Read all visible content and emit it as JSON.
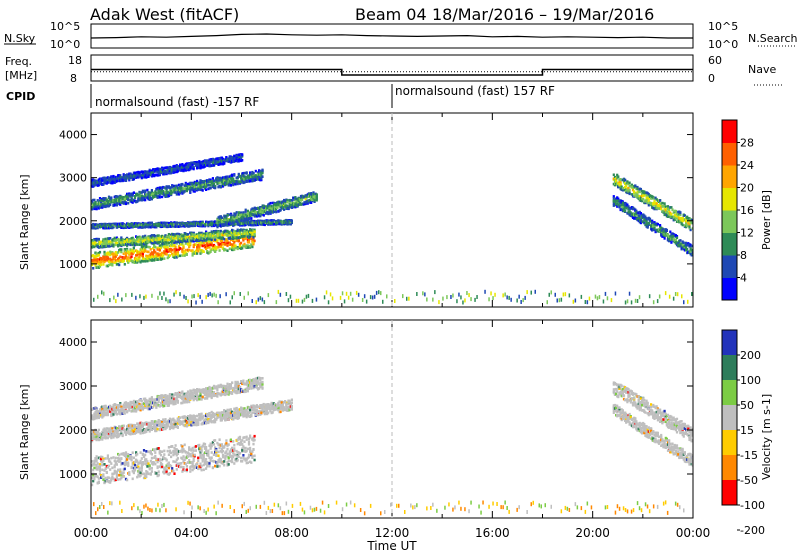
{
  "header": {
    "station": "Adak West (fitACF)",
    "beam": "Beam 04",
    "date_range": "18/Mar/2016 – 19/Mar/2016"
  },
  "time_axis": {
    "label": "Time UT",
    "ticks": [
      "00:00",
      "04:00",
      "08:00",
      "12:00",
      "16:00",
      "20:00",
      "00:00"
    ]
  },
  "noise_panel": {
    "left_label": "N.Sky",
    "right_label": "N.Search",
    "left_ticks": [
      "10^5",
      "10^0"
    ],
    "right_ticks": [
      "10^5",
      "10^0"
    ]
  },
  "freq_panel": {
    "left_label_line1": "Freq.",
    "left_label_line2": "[MHz]",
    "right_label": "Nave",
    "left_ticks": [
      "18",
      "8"
    ],
    "right_ticks": [
      "60",
      "0"
    ]
  },
  "cpid": {
    "label": "CPID",
    "segments": [
      "normalsound (fast) -157 RF",
      "normalsound (fast) 157 RF"
    ]
  },
  "power_panel": {
    "ylabel": "Slant Range [km]",
    "yticks": [
      "1000",
      "2000",
      "3000",
      "4000"
    ],
    "colorbar_label": "Power [dB]",
    "colorbar_ticks": [
      "4",
      "8",
      "12",
      "16",
      "20",
      "24",
      "28"
    ],
    "colors": [
      "#0000ff",
      "#1e48b4",
      "#2e8b57",
      "#7cc75a",
      "#e6e600",
      "#ffa500",
      "#ff6000",
      "#ff0000"
    ]
  },
  "velocity_panel": {
    "ylabel": "Slant Range [km]",
    "yticks": [
      "1000",
      "2000",
      "3000",
      "4000"
    ],
    "colorbar_label": "Velocity [m s-1]",
    "colorbar_ticks": [
      "200",
      "100",
      "50",
      "15",
      "-15",
      "-50",
      "-100",
      "-200"
    ],
    "colors": [
      "#2233bb",
      "#2e7d5b",
      "#7ccc44",
      "#bfbfbf",
      "#ffcc00",
      "#ff8800",
      "#ff0000"
    ]
  },
  "chart_data": {
    "type": "heatmap",
    "x_range_hours": [
      0,
      24
    ],
    "y_range_km": [
      0,
      4500
    ],
    "noise_sky_log10": [
      2.0,
      2.1,
      2.3,
      2.2,
      2.4,
      2.6,
      2.9,
      3.0,
      2.8,
      2.7,
      2.8,
      2.6,
      2.5,
      2.4,
      2.5,
      2.6,
      2.3,
      2.4,
      2.2,
      2.3,
      2.2,
      2.1,
      2.2,
      2.0,
      2.0
    ],
    "frequency_mhz": [
      {
        "start_h": 0.0,
        "end_h": 10.0,
        "value": 12.3
      },
      {
        "start_h": 10.0,
        "end_h": 18.0,
        "value": 9.8
      },
      {
        "start_h": 18.0,
        "end_h": 24.0,
        "value": 12.3
      }
    ],
    "nave": 20,
    "cpid_change_hour": 12.0,
    "power_features": [
      {
        "kind": "arc",
        "start_h": 0.0,
        "end_h": 6.5,
        "r0_km": 1100,
        "r1_km": 1600,
        "half_width_km": 180,
        "power_db": 30
      },
      {
        "kind": "arc",
        "start_h": 0.0,
        "end_h": 6.5,
        "r0_km": 1500,
        "r1_km": 1750,
        "half_width_km": 100,
        "power_db": 20
      },
      {
        "kind": "arc",
        "start_h": 0.0,
        "end_h": 8.0,
        "r0_km": 1900,
        "r1_km": 2000,
        "half_width_km": 50,
        "power_db": 14
      },
      {
        "kind": "arc",
        "start_h": 5.0,
        "end_h": 9.0,
        "r0_km": 2000,
        "r1_km": 2600,
        "half_width_km": 120,
        "power_db": 16
      },
      {
        "kind": "arc",
        "start_h": 0.0,
        "end_h": 6.8,
        "r0_km": 2400,
        "r1_km": 3100,
        "half_width_km": 120,
        "power_db": 14
      },
      {
        "kind": "arc",
        "start_h": 0.0,
        "end_h": 6.0,
        "r0_km": 2900,
        "r1_km": 3500,
        "half_width_km": 80,
        "power_db": 10
      },
      {
        "kind": "arc",
        "start_h": 20.8,
        "end_h": 24.0,
        "r0_km": 3000,
        "r1_km": 1900,
        "half_width_km": 140,
        "power_db": 22
      },
      {
        "kind": "arc",
        "start_h": 20.8,
        "end_h": 24.0,
        "r0_km": 2500,
        "r1_km": 1300,
        "half_width_km": 120,
        "power_db": 14
      }
    ],
    "velocity_features": [
      {
        "kind": "arc",
        "start_h": 0.0,
        "end_h": 6.5,
        "r0_km": 1100,
        "r1_km": 1600,
        "half_width_km": 320,
        "velocity": 0
      },
      {
        "kind": "arc",
        "start_h": 0.0,
        "end_h": 8.0,
        "r0_km": 1900,
        "r1_km": 2600,
        "half_width_km": 120,
        "velocity": 0
      },
      {
        "kind": "arc",
        "start_h": 0.0,
        "end_h": 6.8,
        "r0_km": 2400,
        "r1_km": 3100,
        "half_width_km": 130,
        "velocity": 0
      },
      {
        "kind": "arc",
        "start_h": 20.8,
        "end_h": 24.0,
        "r0_km": 3000,
        "r1_km": 1900,
        "half_width_km": 160,
        "velocity": 0
      },
      {
        "kind": "arc",
        "start_h": 20.8,
        "end_h": 24.0,
        "r0_km": 2500,
        "r1_km": 1300,
        "half_width_km": 130,
        "velocity": 0
      }
    ]
  }
}
